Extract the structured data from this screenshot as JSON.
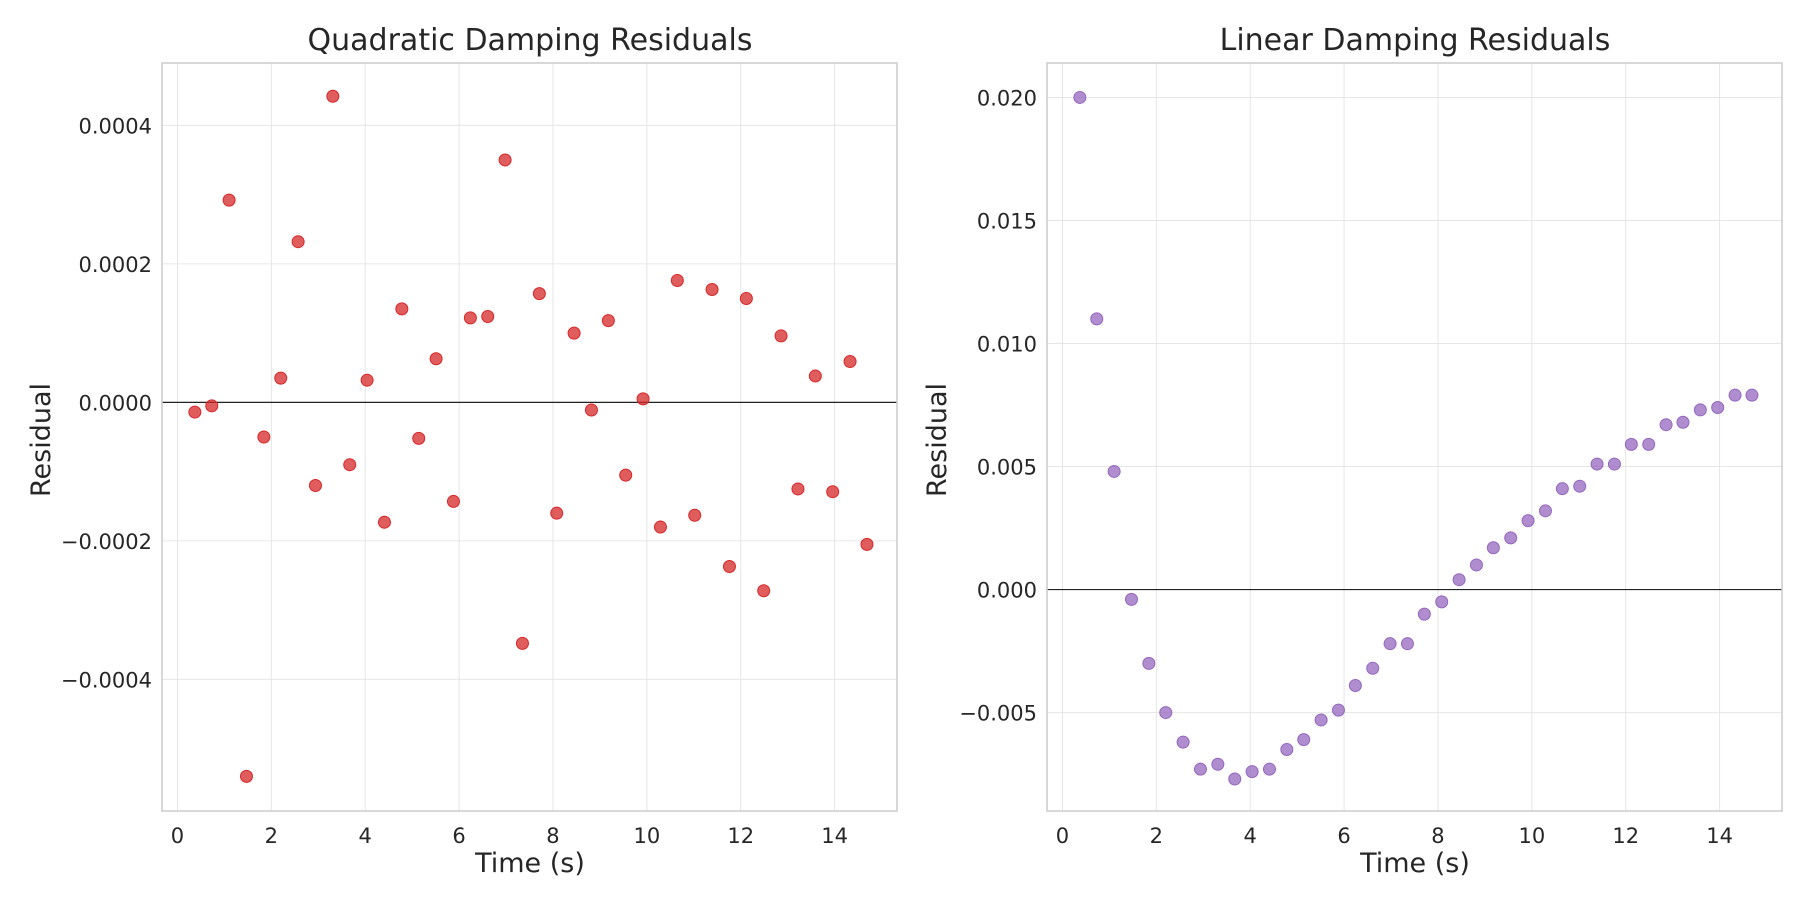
{
  "chart_data": [
    {
      "type": "scatter",
      "title": "Quadratic Damping Residuals",
      "xlabel": "Time (s)",
      "ylabel": "Residual",
      "xlim": [
        -0.33,
        15.33
      ],
      "ylim": [
        -0.00059,
        0.00049
      ],
      "xticks": [
        0,
        2,
        4,
        6,
        8,
        10,
        12,
        14
      ],
      "xtick_labels": [
        "0",
        "2",
        "4",
        "6",
        "8",
        "10",
        "12",
        "14"
      ],
      "yticks": [
        -0.0004,
        -0.0002,
        0.0,
        0.0002,
        0.0004
      ],
      "ytick_labels": [
        "−0.0004",
        "−0.0002",
        "0.0000",
        "0.0002",
        "0.0004"
      ],
      "zero_line": 0,
      "grid": true,
      "color": "#d62728",
      "points": [
        [
          0.37,
          -1.4e-05
        ],
        [
          0.73,
          -5e-06
        ],
        [
          1.1,
          0.000292
        ],
        [
          1.47,
          -0.00054
        ],
        [
          1.84,
          -5e-05
        ],
        [
          2.2,
          3.5e-05
        ],
        [
          2.57,
          0.000232
        ],
        [
          2.94,
          -0.00012
        ],
        [
          3.31,
          0.000442
        ],
        [
          3.67,
          -9e-05
        ],
        [
          4.04,
          3.2e-05
        ],
        [
          4.41,
          -0.000173
        ],
        [
          4.78,
          0.000135
        ],
        [
          5.14,
          -5.2e-05
        ],
        [
          5.51,
          6.3e-05
        ],
        [
          5.88,
          -0.000143
        ],
        [
          6.24,
          0.000122
        ],
        [
          6.61,
          0.000124
        ],
        [
          6.98,
          0.00035
        ],
        [
          7.35,
          -0.000348
        ],
        [
          7.71,
          0.000157
        ],
        [
          8.08,
          -0.00016
        ],
        [
          8.45,
          0.0001
        ],
        [
          8.82,
          -1.1e-05
        ],
        [
          9.18,
          0.000118
        ],
        [
          9.55,
          -0.000105
        ],
        [
          9.92,
          5e-06
        ],
        [
          10.29,
          -0.00018
        ],
        [
          10.65,
          0.000176
        ],
        [
          11.02,
          -0.000163
        ],
        [
          11.39,
          0.000163
        ],
        [
          11.76,
          -0.000237
        ],
        [
          12.12,
          0.00015
        ],
        [
          12.49,
          -0.000272
        ],
        [
          12.86,
          9.6e-05
        ],
        [
          13.22,
          -0.000125
        ],
        [
          13.59,
          3.8e-05
        ],
        [
          13.96,
          -0.000129
        ],
        [
          14.33,
          5.9e-05
        ],
        [
          14.69,
          -0.000205
        ]
      ]
    },
    {
      "type": "scatter",
      "title": "Linear Damping Residuals",
      "xlabel": "Time (s)",
      "ylabel": "Residual",
      "xlim": [
        -0.33,
        15.33
      ],
      "ylim": [
        -0.009,
        0.0214
      ],
      "xticks": [
        0,
        2,
        4,
        6,
        8,
        10,
        12,
        14
      ],
      "xtick_labels": [
        "0",
        "2",
        "4",
        "6",
        "8",
        "10",
        "12",
        "14"
      ],
      "yticks": [
        -0.005,
        0.0,
        0.005,
        0.01,
        0.015,
        0.02
      ],
      "ytick_labels": [
        "−0.005",
        "0.000",
        "0.005",
        "0.010",
        "0.015",
        "0.020"
      ],
      "zero_line": 0,
      "grid": true,
      "color": "#9467bd",
      "points": [
        [
          0.37,
          0.02
        ],
        [
          0.73,
          0.011
        ],
        [
          1.1,
          0.0048
        ],
        [
          1.47,
          -0.0004
        ],
        [
          1.84,
          -0.003
        ],
        [
          2.2,
          -0.005
        ],
        [
          2.57,
          -0.0062
        ],
        [
          2.94,
          -0.0073
        ],
        [
          3.31,
          -0.0071
        ],
        [
          3.67,
          -0.0077
        ],
        [
          4.04,
          -0.0074
        ],
        [
          4.41,
          -0.0073
        ],
        [
          4.78,
          -0.0065
        ],
        [
          5.14,
          -0.0061
        ],
        [
          5.51,
          -0.0053
        ],
        [
          5.88,
          -0.0049
        ],
        [
          6.24,
          -0.0039
        ],
        [
          6.61,
          -0.0032
        ],
        [
          6.98,
          -0.0022
        ],
        [
          7.35,
          -0.0022
        ],
        [
          7.71,
          -0.001
        ],
        [
          8.08,
          -0.0005
        ],
        [
          8.45,
          0.0004
        ],
        [
          8.82,
          0.001
        ],
        [
          9.18,
          0.0017
        ],
        [
          9.55,
          0.0021
        ],
        [
          9.92,
          0.0028
        ],
        [
          10.29,
          0.0032
        ],
        [
          10.65,
          0.0041
        ],
        [
          11.02,
          0.0042
        ],
        [
          11.39,
          0.0051
        ],
        [
          11.76,
          0.0051
        ],
        [
          12.12,
          0.0059
        ],
        [
          12.49,
          0.0059
        ],
        [
          12.86,
          0.0067
        ],
        [
          13.22,
          0.0068
        ],
        [
          13.59,
          0.0073
        ],
        [
          13.96,
          0.0074
        ],
        [
          14.33,
          0.0079
        ],
        [
          14.69,
          0.0079
        ]
      ]
    }
  ]
}
